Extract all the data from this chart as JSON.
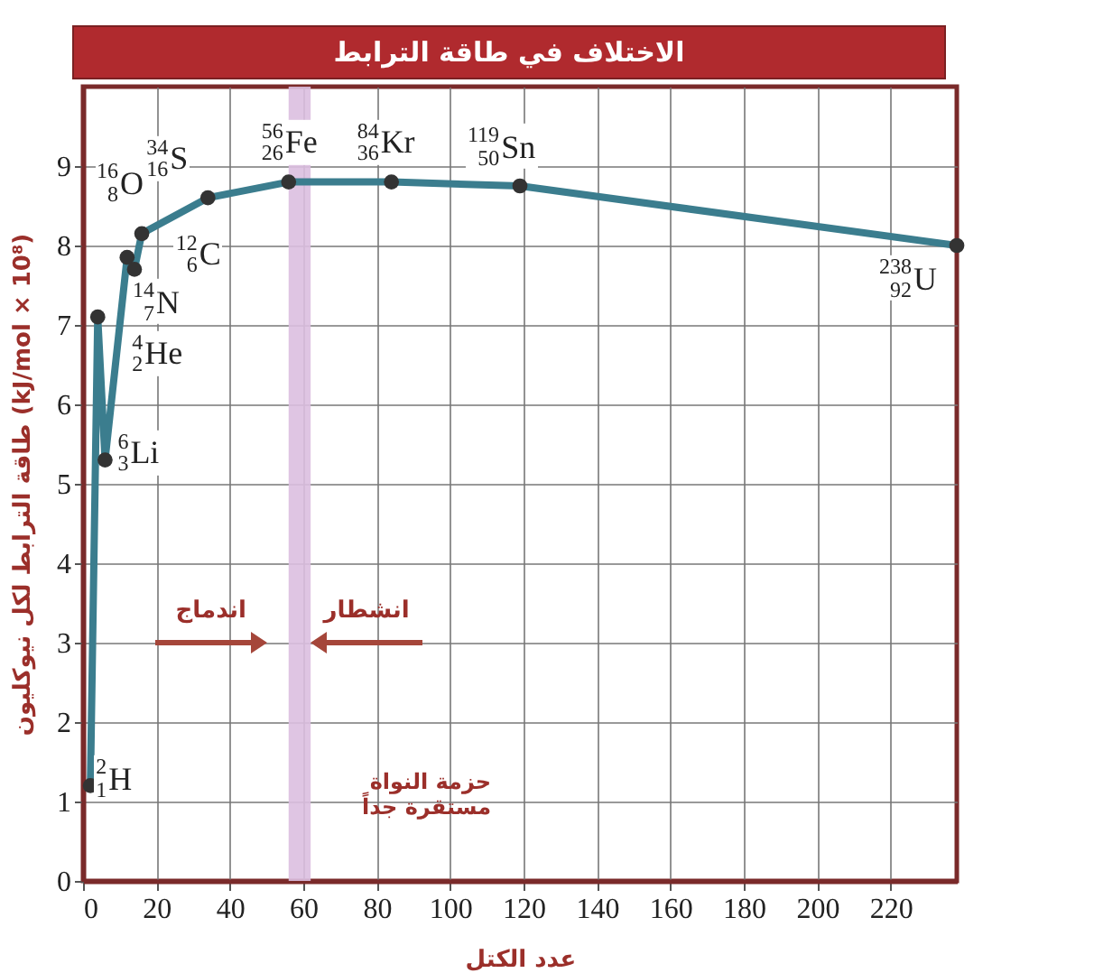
{
  "chart_data": {
    "type": "line",
    "title": "الاختلاف في طاقة الترابط",
    "xlabel": "عدد الكتل",
    "ylabel": "طاقة الترابط لكل نيوكليون (kJ/mol × 10⁸)",
    "x": [
      2,
      4,
      6,
      12,
      14,
      16,
      34,
      56,
      84,
      119,
      238
    ],
    "series": [
      {
        "color": "#3b7d8e",
        "values": [
          1.2,
          7.1,
          5.3,
          7.85,
          7.7,
          8.15,
          8.6,
          8.8,
          8.8,
          8.75,
          8.0
        ]
      }
    ],
    "xlim": [
      0,
      238
    ],
    "ylim": [
      0,
      10
    ],
    "xticks": [
      0,
      20,
      40,
      60,
      80,
      100,
      120,
      140,
      160,
      180,
      200,
      220
    ],
    "yticks": [
      0,
      1,
      2,
      3,
      4,
      5,
      6,
      7,
      8,
      9
    ],
    "grid": true,
    "marker": "circle",
    "line_style": "solid",
    "bands": [
      {
        "axis": "x",
        "from": 56,
        "to": 62,
        "label": "حزمة النواة\nمستقرة جداً",
        "color": "#dcbfe0"
      }
    ],
    "annotations": [
      {
        "text": "$^{2}$$_{1}$H",
        "x": 2,
        "y": 1.2
      },
      {
        "text": "$^{4}$$_{2}$He",
        "x": 4,
        "y": 7.1
      },
      {
        "text": "$^{6}$$_{3}$Li",
        "x": 6,
        "y": 5.3
      },
      {
        "text": "$^{12}$$_{6}$C",
        "x": 12,
        "y": 7.85
      },
      {
        "text": "$^{14}$$_{7}$N",
        "x": 14,
        "y": 7.7
      },
      {
        "text": "$^{16}$$_{8}$O",
        "x": 16,
        "y": 8.15
      },
      {
        "text": "$^{34}$$_{16}$S",
        "x": 34,
        "y": 8.6
      },
      {
        "text": "$^{56}$$_{26}$Fe",
        "x": 56,
        "y": 8.8
      },
      {
        "text": "$^{84}$$_{36}$Kr",
        "x": 84,
        "y": 8.8
      },
      {
        "text": "$^{119}$$_{50}$Sn",
        "x": 119,
        "y": 8.75
      },
      {
        "text": "$^{238}$$_{92}$U",
        "x": 238,
        "y": 8.0
      },
      "اندماج",
      "انشطار"
    ]
  }
}
